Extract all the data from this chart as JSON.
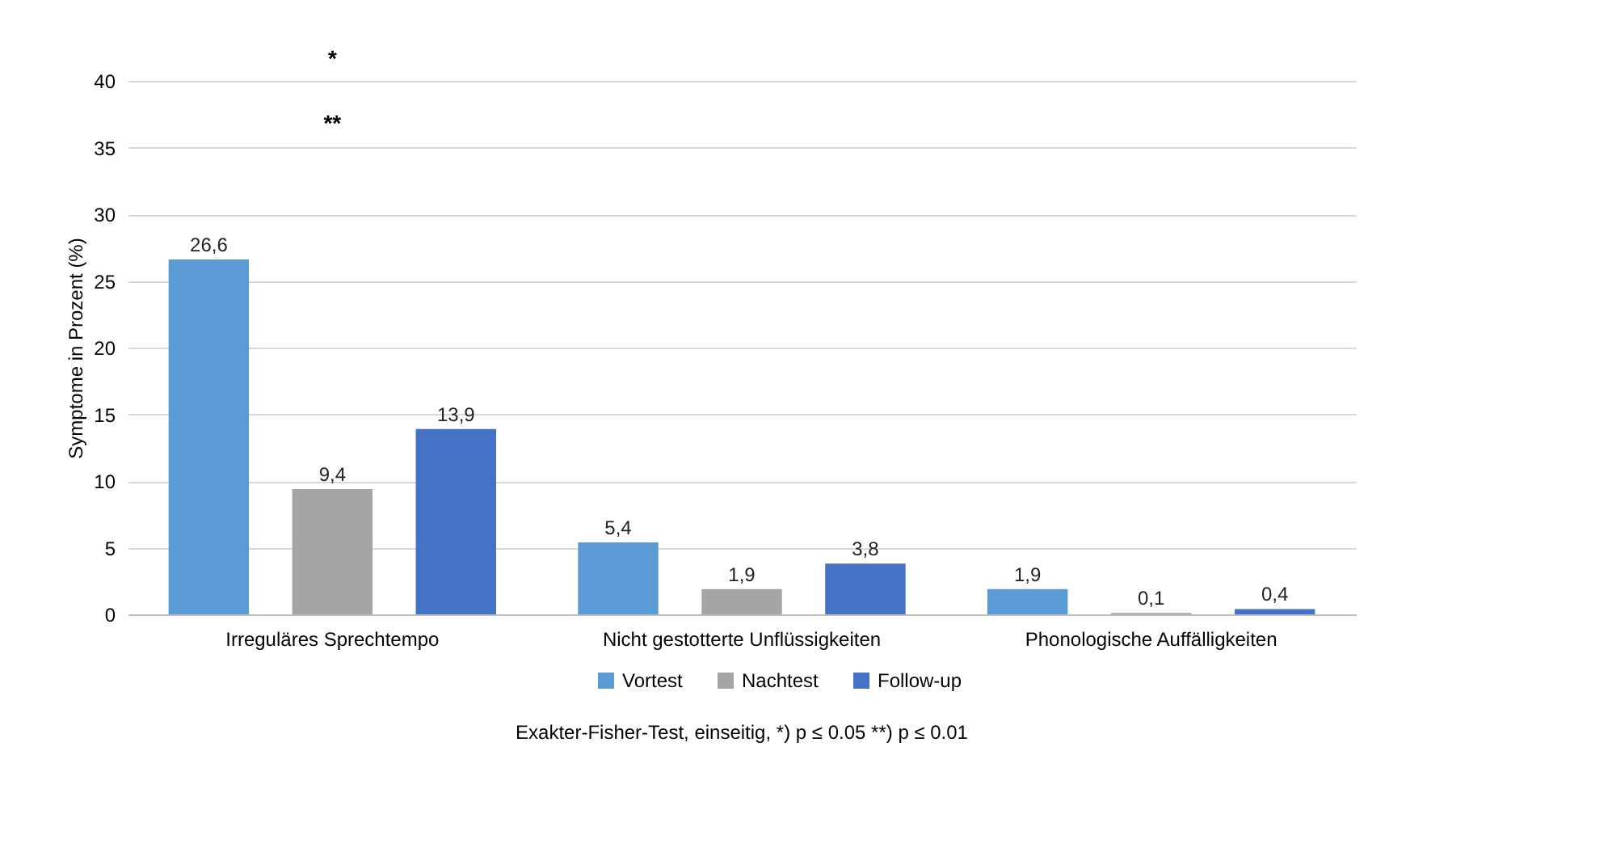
{
  "chart_data": {
    "type": "bar",
    "ylabel": "Symptome in Prozent (%)",
    "categories": [
      "Irreguläres Sprechtempo",
      "Nicht gestotterte Unflüssigkeiten",
      "Phonologische Auffälligkeiten"
    ],
    "series": [
      {
        "name": "Vortest",
        "color": "#5b9bd5",
        "values": [
          26.6,
          5.4,
          1.9
        ],
        "value_labels": [
          "26,6",
          "5,4",
          "1,9"
        ]
      },
      {
        "name": "Nachtest",
        "color": "#a5a5a5",
        "values": [
          9.4,
          1.9,
          0.1
        ],
        "value_labels": [
          "9,4",
          "1,9",
          "0,1"
        ]
      },
      {
        "name": "Follow-up",
        "color": "#4472c4",
        "values": [
          13.9,
          3.8,
          0.4
        ],
        "value_labels": [
          "13,9",
          "3,8",
          "0,4"
        ]
      }
    ],
    "ylim": [
      0,
      40
    ],
    "yticks": [
      0,
      5,
      10,
      15,
      20,
      25,
      30,
      35,
      40
    ],
    "grid": "y",
    "legend": "bottom",
    "annotations": [
      "*",
      "**",
      "Exakter-Fisher-Test, einseitig, *)  p ≤ 0.05   **)  p ≤ 0.01"
    ]
  }
}
